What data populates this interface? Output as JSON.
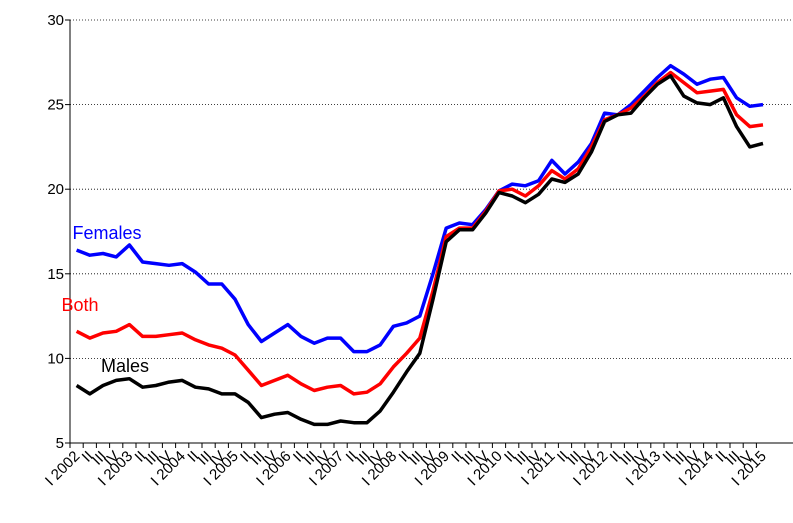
{
  "chart_data": {
    "type": "line",
    "categories": [
      "I 2002",
      "II",
      "III",
      "IV",
      "I 2003",
      "II",
      "III",
      "IV",
      "I 2004",
      "II",
      "III",
      "IV",
      "I 2005",
      "II",
      "III",
      "IV",
      "I 2006",
      "II",
      "III",
      "IV",
      "I 2007",
      "II",
      "III",
      "IV",
      "I 2008",
      "II",
      "III",
      "IV",
      "I 2009",
      "II",
      "III",
      "IV",
      "I 2010",
      "II",
      "III",
      "IV",
      "I 2011",
      "II",
      "III",
      "IV",
      "I 2012",
      "II",
      "III",
      "IV",
      "I 2013",
      "II",
      "III",
      "IV",
      "I 2014",
      "II",
      "III",
      "IV",
      "I 2015"
    ],
    "series": [
      {
        "name": "Females",
        "color": "#0000ff",
        "values": [
          16.4,
          16.1,
          16.2,
          16.0,
          16.7,
          15.7,
          15.6,
          15.5,
          15.6,
          15.1,
          14.4,
          14.4,
          13.5,
          12.0,
          11.0,
          11.5,
          12.0,
          11.3,
          10.9,
          11.2,
          11.2,
          10.4,
          10.4,
          10.8,
          11.9,
          12.1,
          12.5,
          15.0,
          17.7,
          18.0,
          17.9,
          18.8,
          19.9,
          20.3,
          20.2,
          20.5,
          21.7,
          20.9,
          21.6,
          22.7,
          24.5,
          24.4,
          25.0,
          25.8,
          26.6,
          27.3,
          26.8,
          26.2,
          26.5,
          26.6,
          25.4,
          24.9,
          25.0
        ]
      },
      {
        "name": "Both",
        "color": "#ff0000",
        "values": [
          11.6,
          11.2,
          11.5,
          11.6,
          12.0,
          11.3,
          11.3,
          11.4,
          11.5,
          11.1,
          10.8,
          10.6,
          10.2,
          9.3,
          8.4,
          8.7,
          9.0,
          8.5,
          8.1,
          8.3,
          8.4,
          7.9,
          8.0,
          8.5,
          9.5,
          10.3,
          11.2,
          14.0,
          17.2,
          17.7,
          17.7,
          18.7,
          19.9,
          20.0,
          19.6,
          20.2,
          21.1,
          20.6,
          21.2,
          22.5,
          24.1,
          24.4,
          24.8,
          25.5,
          26.3,
          26.9,
          26.3,
          25.7,
          25.8,
          25.9,
          24.4,
          23.7,
          23.8
        ]
      },
      {
        "name": "Males",
        "color": "#000000",
        "values": [
          8.4,
          7.9,
          8.4,
          8.7,
          8.8,
          8.3,
          8.4,
          8.6,
          8.7,
          8.3,
          8.2,
          7.9,
          7.9,
          7.4,
          6.5,
          6.7,
          6.8,
          6.4,
          6.1,
          6.1,
          6.3,
          6.2,
          6.2,
          6.9,
          8.0,
          9.2,
          10.3,
          13.5,
          16.9,
          17.6,
          17.6,
          18.6,
          19.8,
          19.6,
          19.2,
          19.7,
          20.6,
          20.4,
          20.9,
          22.2,
          24.0,
          24.4,
          24.5,
          25.4,
          26.2,
          26.7,
          25.5,
          25.1,
          25.0,
          25.4,
          23.7,
          22.5,
          22.7
        ]
      }
    ],
    "ylim": [
      5,
      30
    ],
    "yticks": [
      5,
      10,
      15,
      20,
      25,
      30
    ],
    "grid": true
  }
}
